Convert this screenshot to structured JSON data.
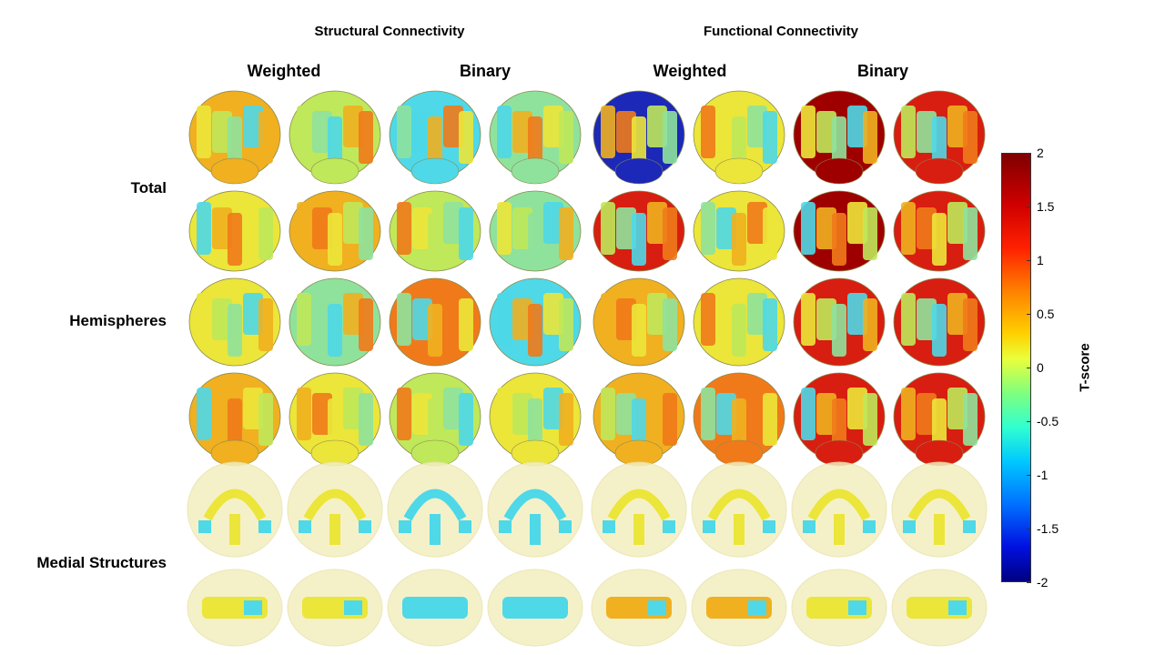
{
  "headers": {
    "structural": "Structural Connectivity",
    "functional": "Functional Connectivity",
    "sub": [
      "Weighted",
      "Binary",
      "Weighted",
      "Binary"
    ]
  },
  "row_labels": {
    "total": "Total",
    "hemispheres": "Hemispheres",
    "medial": "Medial Structures"
  },
  "colorbar": {
    "label": "T-score",
    "ticks": [
      "2",
      "1.5",
      "1",
      "0.5",
      "0",
      "-0.5",
      "-1",
      "-1.5",
      "-2"
    ]
  },
  "colors": {
    "dark_red": "#9e0000",
    "red": "#d81e10",
    "orange": "#f07a1a",
    "yellow_orange": "#f0b020",
    "yellow": "#ece53a",
    "green_yellow": "#bfe85a",
    "green": "#8fe29c",
    "cyan": "#4ed8e8",
    "blue": "#2f8ae8",
    "dark_blue": "#1c28b8",
    "ghost": "#f3efc0"
  },
  "brain_grid": [
    [
      "yellow_orange",
      "green_yellow",
      "cyan",
      "green",
      "dark_blue",
      "yellow",
      "dark_red",
      "red"
    ],
    [
      "yellow",
      "yellow_orange",
      "green_yellow",
      "green",
      "red",
      "yellow",
      "dark_red",
      "red"
    ],
    [
      "yellow",
      "green",
      "orange",
      "cyan",
      "yellow_orange",
      "yellow",
      "red",
      "red"
    ],
    [
      "yellow_orange",
      "yellow",
      "green_yellow",
      "yellow",
      "yellow_orange",
      "orange",
      "red",
      "red"
    ],
    [
      "yellow",
      "yellow",
      "cyan",
      "cyan",
      "yellow",
      "yellow",
      "yellow",
      "yellow"
    ],
    [
      "yellow",
      "yellow",
      "cyan",
      "cyan",
      "yellow_orange",
      "yellow_orange",
      "yellow",
      "yellow"
    ]
  ]
}
